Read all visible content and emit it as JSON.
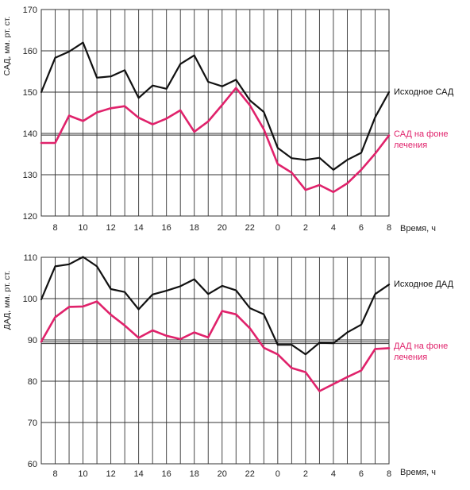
{
  "colors": {
    "baseline": "#111111",
    "treatment": "#e0226b",
    "grid": "#333333",
    "background": "#ffffff"
  },
  "chart_data": [
    {
      "type": "line",
      "ylabel": "САД, мм. рт. ст.",
      "xlabel": "Время, ч",
      "ylim": [
        120,
        170
      ],
      "yticks": [
        120,
        130,
        140,
        150,
        160,
        170
      ],
      "xtick_labels": [
        "8",
        "10",
        "12",
        "14",
        "16",
        "18",
        "20",
        "22",
        "0",
        "2",
        "4",
        "6",
        "8"
      ],
      "x": [
        "7",
        "8",
        "9",
        "10",
        "11",
        "12",
        "13",
        "14",
        "15",
        "16",
        "17",
        "18",
        "19",
        "20",
        "21",
        "22",
        "23",
        "0",
        "1",
        "2",
        "3",
        "4",
        "5",
        "6",
        "7",
        "8"
      ],
      "ref_lines": [
        140,
        139.6
      ],
      "grid": true,
      "series": [
        {
          "name": "Исходное САД",
          "color": "#111111",
          "values": [
            150,
            158.3,
            159.8,
            162,
            153.5,
            153.8,
            155.3,
            148.6,
            151.6,
            150.8,
            156.8,
            158.9,
            152.5,
            151.4,
            153,
            148,
            145.2,
            136.5,
            134,
            133.6,
            134.1,
            131.2,
            133.6,
            135.3,
            143.9,
            150
          ]
        },
        {
          "name": "САД на фоне лечения",
          "color": "#e0226b",
          "values": [
            137.7,
            137.7,
            144.3,
            143,
            145.1,
            146.1,
            146.6,
            143.8,
            142.2,
            143.6,
            145.6,
            140.4,
            142.9,
            146.9,
            151,
            146.8,
            141,
            132.6,
            130.5,
            126.3,
            127.5,
            125.8,
            127.9,
            131.2,
            135.1,
            139.5
          ]
        }
      ]
    },
    {
      "type": "line",
      "ylabel": "ДАД, мм. рт. ст.",
      "xlabel": "Время, ч",
      "ylim": [
        60,
        110
      ],
      "yticks": [
        60,
        70,
        80,
        90,
        100,
        110
      ],
      "xtick_labels": [
        "8",
        "10",
        "12",
        "14",
        "16",
        "18",
        "20",
        "22",
        "0",
        "2",
        "4",
        "6",
        "8"
      ],
      "x": [
        "7",
        "8",
        "9",
        "10",
        "11",
        "12",
        "13",
        "14",
        "15",
        "16",
        "17",
        "18",
        "19",
        "20",
        "21",
        "22",
        "23",
        "0",
        "1",
        "2",
        "3",
        "4",
        "5",
        "6",
        "7",
        "8"
      ],
      "ref_lines": [
        89.5,
        89.1
      ],
      "grid": true,
      "series": [
        {
          "name": "Исходное ДАД",
          "color": "#111111",
          "values": [
            99.8,
            107.8,
            108.3,
            110.1,
            107.8,
            102.3,
            101.6,
            97.4,
            101,
            101.9,
            103,
            104.7,
            101.1,
            103.1,
            102,
            97.7,
            96.2,
            88.8,
            88.8,
            86.5,
            89.3,
            89.2,
            91.8,
            93.7,
            101.1,
            103.4
          ]
        },
        {
          "name": "ДАД на фоне лечения",
          "color": "#e0226b",
          "values": [
            89.6,
            95.5,
            98,
            98.1,
            99.3,
            96.1,
            93.5,
            90.5,
            92.3,
            91,
            90.2,
            91.8,
            90.6,
            97,
            96.2,
            92.8,
            88.1,
            86.5,
            83.2,
            82.2,
            77.6,
            79.3,
            81,
            82.6,
            87.8,
            88
          ]
        }
      ]
    }
  ]
}
